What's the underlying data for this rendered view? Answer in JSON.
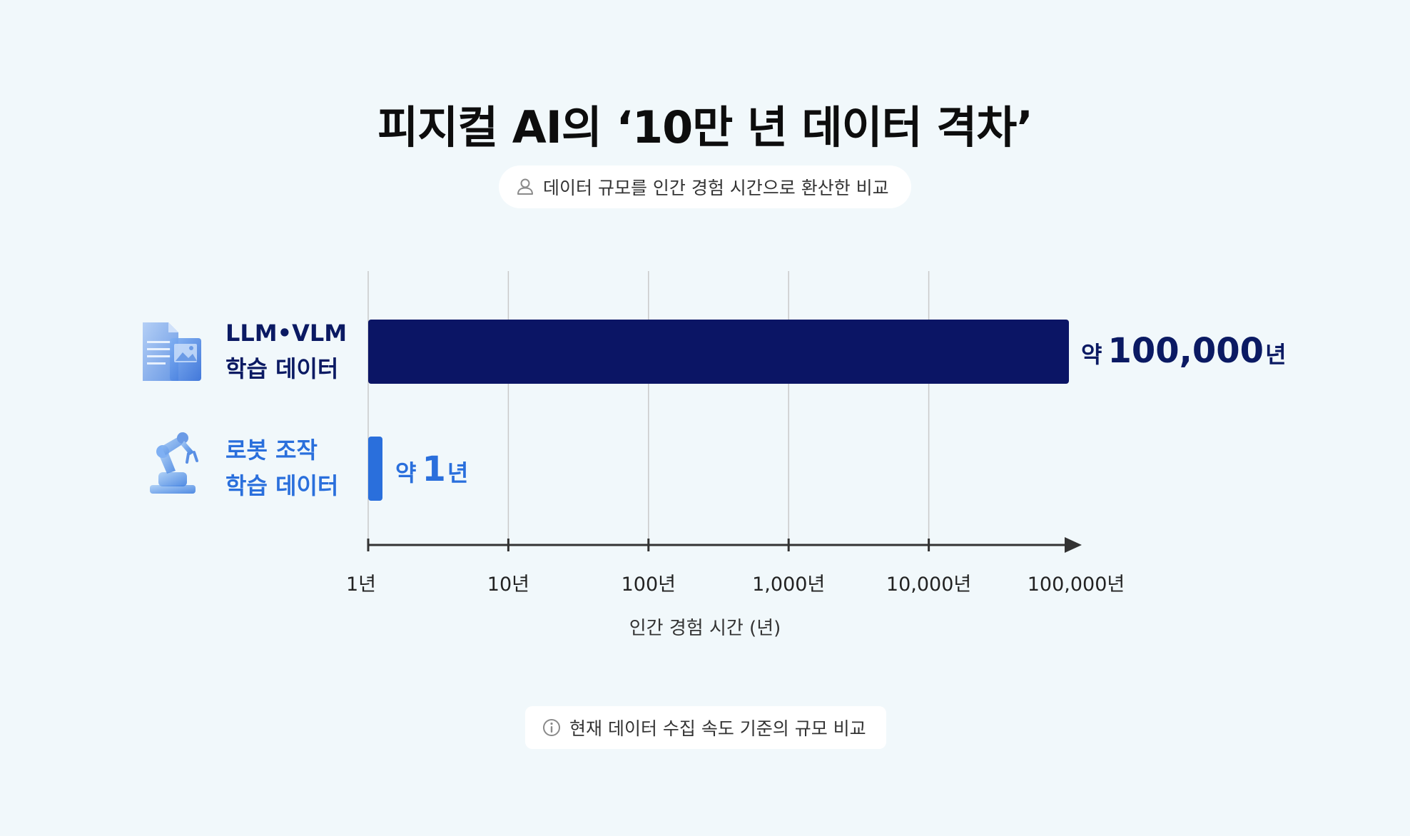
{
  "title": "피지컬 AI의 ‘10만 년 데이터 격차’",
  "subtitle": "데이터 규모를 인간 경험 시간으로 환산한 비교",
  "footnote": "현재 데이터 수집 속도 기준의 규모 비교",
  "icons": {
    "subtitle": "person-icon",
    "footnote": "info-icon",
    "llm": "document-icon",
    "robot": "robot-arm-icon"
  },
  "colors": {
    "background": "#f1f8fb",
    "llm": "#0b1565",
    "robot": "#2a6fdc",
    "axis": "#333333",
    "grid": "#c9c9c9"
  },
  "rows": [
    {
      "label_line1": "LLM•VLM",
      "label_line2": "학습 데이터",
      "value_prefix": "약",
      "value_number": "100,000",
      "value_unit": "년"
    },
    {
      "label_line1": "로봇 조작",
      "label_line2": "학습 데이터",
      "value_prefix": "약",
      "value_number": "1",
      "value_unit": "년"
    }
  ],
  "chart_data": {
    "type": "bar",
    "orientation": "horizontal",
    "x_scale": "log",
    "xlim": [
      1,
      100000
    ],
    "categories": [
      "LLM•VLM 학습 데이터",
      "로봇 조작 학습 데이터"
    ],
    "values": [
      100000,
      1
    ],
    "xlabel": "인간 경험 시간 (년)",
    "x_ticks": [
      1,
      10,
      100,
      1000,
      10000,
      100000
    ],
    "x_tick_labels": [
      "1년",
      "10년",
      "100년",
      "1,000년",
      "10,000년",
      "100,000년"
    ],
    "grid": true
  }
}
